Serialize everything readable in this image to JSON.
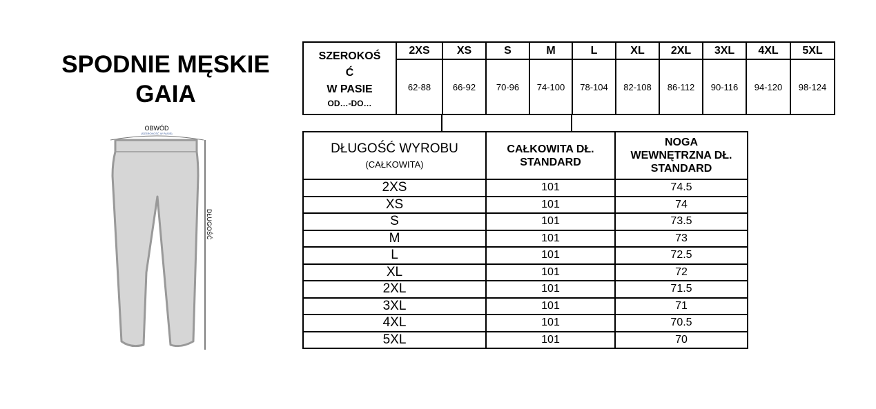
{
  "title": {
    "line1": "SPODNIE MĘSKIE",
    "line2": "GAIA"
  },
  "figure": {
    "waist_label": "OBWÓD",
    "waist_sublabel": "(SZEROKOŚĆ W PASIE)",
    "length_label": "DŁUGOŚĆ"
  },
  "waist_table": {
    "label": [
      "SZEROKOŚ",
      "Ć",
      "W PASIE"
    ],
    "sublabel": "OD…-DO…",
    "sizes": [
      "2XS",
      "XS",
      "S",
      "M",
      "L",
      "XL",
      "2XL",
      "3XL",
      "4XL",
      "5XL"
    ],
    "values": [
      "62-88",
      "66-92",
      "70-96",
      "74-100",
      "78-104",
      "82-108",
      "86-112",
      "90-116",
      "94-120",
      "98-124"
    ]
  },
  "length_table": {
    "label": "DŁUGOŚĆ WYROBU",
    "sublabel": "(CAŁKOWITA)",
    "col1": [
      "CAŁKOWITA DŁ.",
      "STANDARD"
    ],
    "col2": [
      "NOGA",
      "WEWNĘTRZNA DŁ.",
      "STANDARD"
    ],
    "rows": [
      {
        "size": "2XS",
        "total": "101",
        "inseam": "74.5"
      },
      {
        "size": "XS",
        "total": "101",
        "inseam": "74"
      },
      {
        "size": "S",
        "total": "101",
        "inseam": "73.5"
      },
      {
        "size": "M",
        "total": "101",
        "inseam": "73"
      },
      {
        "size": "L",
        "total": "101",
        "inseam": "72.5"
      },
      {
        "size": "XL",
        "total": "101",
        "inseam": "72"
      },
      {
        "size": "2XL",
        "total": "101",
        "inseam": "71.5"
      },
      {
        "size": "3XL",
        "total": "101",
        "inseam": "71"
      },
      {
        "size": "4XL",
        "total": "101",
        "inseam": "70.5"
      },
      {
        "size": "5XL",
        "total": "101",
        "inseam": "70"
      }
    ]
  }
}
